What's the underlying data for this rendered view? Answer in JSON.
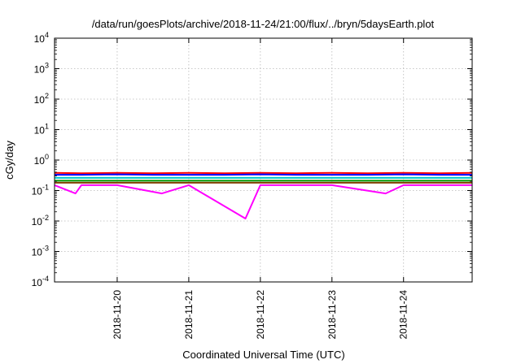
{
  "chart_data": {
    "type": "line",
    "title": "/data/run/goesPlots/archive/2018-11-24/21:00/flux/../bryn/5daysEarth.plot",
    "xlabel": "Coordinated Universal Time (UTC)",
    "ylabel": "cGy/day",
    "y_scale": "log",
    "ylim": [
      0.0001,
      10000
    ],
    "y_ticks": [
      {
        "value": 0.0001,
        "base": "10",
        "exp": "-4"
      },
      {
        "value": 0.001,
        "base": "10",
        "exp": "-3"
      },
      {
        "value": 0.01,
        "base": "10",
        "exp": "-2"
      },
      {
        "value": 0.1,
        "base": "10",
        "exp": "-1"
      },
      {
        "value": 1,
        "base": "10",
        "exp": "0"
      },
      {
        "value": 10,
        "base": "10",
        "exp": "1"
      },
      {
        "value": 100,
        "base": "10",
        "exp": "2"
      },
      {
        "value": 1000,
        "base": "10",
        "exp": "3"
      },
      {
        "value": 10000,
        "base": "10",
        "exp": "4"
      }
    ],
    "xlim": [
      "2018-11-19 03:00",
      "2018-11-24 23:00"
    ],
    "x_ticks": [
      "2018-11-20",
      "2018-11-21",
      "2018-11-22",
      "2018-11-23",
      "2018-11-24"
    ],
    "grid": true,
    "legend": "none",
    "series": [
      {
        "color": "#ff0000",
        "values": [
          {
            "x": "2018-11-19 03:00",
            "y": 0.38
          },
          {
            "x": "2018-11-19 12:00",
            "y": 0.37
          },
          {
            "x": "2018-11-20 00:00",
            "y": 0.38
          },
          {
            "x": "2018-11-20 12:00",
            "y": 0.37
          },
          {
            "x": "2018-11-21 00:00",
            "y": 0.38
          },
          {
            "x": "2018-11-21 12:00",
            "y": 0.37
          },
          {
            "x": "2018-11-22 00:00",
            "y": 0.38
          },
          {
            "x": "2018-11-22 12:00",
            "y": 0.37
          },
          {
            "x": "2018-11-23 00:00",
            "y": 0.38
          },
          {
            "x": "2018-11-23 12:00",
            "y": 0.37
          },
          {
            "x": "2018-11-24 00:00",
            "y": 0.38
          },
          {
            "x": "2018-11-24 12:00",
            "y": 0.37
          },
          {
            "x": "2018-11-24 23:00",
            "y": 0.38
          }
        ]
      },
      {
        "color": "#0000ff",
        "values": [
          {
            "x": "2018-11-19 03:00",
            "y": 0.33
          },
          {
            "x": "2018-11-19 12:00",
            "y": 0.33
          },
          {
            "x": "2018-11-20 00:00",
            "y": 0.34
          },
          {
            "x": "2018-11-20 12:00",
            "y": 0.33
          },
          {
            "x": "2018-11-21 00:00",
            "y": 0.33
          },
          {
            "x": "2018-11-21 12:00",
            "y": 0.33
          },
          {
            "x": "2018-11-22 00:00",
            "y": 0.34
          },
          {
            "x": "2018-11-22 12:00",
            "y": 0.33
          },
          {
            "x": "2018-11-23 00:00",
            "y": 0.33
          },
          {
            "x": "2018-11-23 12:00",
            "y": 0.33
          },
          {
            "x": "2018-11-24 00:00",
            "y": 0.34
          },
          {
            "x": "2018-11-24 12:00",
            "y": 0.33
          },
          {
            "x": "2018-11-24 23:00",
            "y": 0.33
          }
        ]
      },
      {
        "color": "#00c8c8",
        "values": [
          {
            "x": "2018-11-19 03:00",
            "y": 0.26
          },
          {
            "x": "2018-11-19 12:00",
            "y": 0.26
          },
          {
            "x": "2018-11-20 00:00",
            "y": 0.26
          },
          {
            "x": "2018-11-20 12:00",
            "y": 0.26
          },
          {
            "x": "2018-11-21 00:00",
            "y": 0.26
          },
          {
            "x": "2018-11-21 12:00",
            "y": 0.26
          },
          {
            "x": "2018-11-22 00:00",
            "y": 0.26
          },
          {
            "x": "2018-11-22 12:00",
            "y": 0.26
          },
          {
            "x": "2018-11-23 00:00",
            "y": 0.26
          },
          {
            "x": "2018-11-23 12:00",
            "y": 0.26
          },
          {
            "x": "2018-11-24 00:00",
            "y": 0.26
          },
          {
            "x": "2018-11-24 12:00",
            "y": 0.26
          },
          {
            "x": "2018-11-24 23:00",
            "y": 0.26
          }
        ]
      },
      {
        "color": "#009900",
        "values": [
          {
            "x": "2018-11-19 03:00",
            "y": 0.21
          },
          {
            "x": "2018-11-19 12:00",
            "y": 0.21
          },
          {
            "x": "2018-11-20 00:00",
            "y": 0.21
          },
          {
            "x": "2018-11-20 12:00",
            "y": 0.21
          },
          {
            "x": "2018-11-21 00:00",
            "y": 0.21
          },
          {
            "x": "2018-11-21 12:00",
            "y": 0.21
          },
          {
            "x": "2018-11-22 00:00",
            "y": 0.21
          },
          {
            "x": "2018-11-22 12:00",
            "y": 0.21
          },
          {
            "x": "2018-11-23 00:00",
            "y": 0.21
          },
          {
            "x": "2018-11-23 12:00",
            "y": 0.21
          },
          {
            "x": "2018-11-24 00:00",
            "y": 0.21
          },
          {
            "x": "2018-11-24 12:00",
            "y": 0.21
          },
          {
            "x": "2018-11-24 23:00",
            "y": 0.21
          }
        ]
      },
      {
        "color": "#804000",
        "values": [
          {
            "x": "2018-11-19 03:00",
            "y": 0.18
          },
          {
            "x": "2018-11-19 12:00",
            "y": 0.18
          },
          {
            "x": "2018-11-20 00:00",
            "y": 0.18
          },
          {
            "x": "2018-11-20 12:00",
            "y": 0.18
          },
          {
            "x": "2018-11-21 00:00",
            "y": 0.18
          },
          {
            "x": "2018-11-21 12:00",
            "y": 0.18
          },
          {
            "x": "2018-11-22 00:00",
            "y": 0.18
          },
          {
            "x": "2018-11-22 12:00",
            "y": 0.18
          },
          {
            "x": "2018-11-23 00:00",
            "y": 0.18
          },
          {
            "x": "2018-11-23 12:00",
            "y": 0.18
          },
          {
            "x": "2018-11-24 00:00",
            "y": 0.18
          },
          {
            "x": "2018-11-24 12:00",
            "y": 0.18
          },
          {
            "x": "2018-11-24 23:00",
            "y": 0.18
          }
        ]
      },
      {
        "color": "#ff00ff",
        "values": [
          {
            "x": "2018-11-19 03:00",
            "y": 0.15
          },
          {
            "x": "2018-11-19 10:00",
            "y": 0.08
          },
          {
            "x": "2018-11-19 12:00",
            "y": 0.15
          },
          {
            "x": "2018-11-20 00:00",
            "y": 0.15
          },
          {
            "x": "2018-11-20 15:00",
            "y": 0.08
          },
          {
            "x": "2018-11-21 00:00",
            "y": 0.15
          },
          {
            "x": "2018-11-21 19:00",
            "y": 0.012
          },
          {
            "x": "2018-11-22 00:00",
            "y": 0.15
          },
          {
            "x": "2018-11-22 12:00",
            "y": 0.15
          },
          {
            "x": "2018-11-23 00:00",
            "y": 0.15
          },
          {
            "x": "2018-11-23 18:00",
            "y": 0.08
          },
          {
            "x": "2018-11-24 00:00",
            "y": 0.15
          },
          {
            "x": "2018-11-24 12:00",
            "y": 0.15
          },
          {
            "x": "2018-11-24 23:00",
            "y": 0.15
          }
        ]
      }
    ]
  }
}
